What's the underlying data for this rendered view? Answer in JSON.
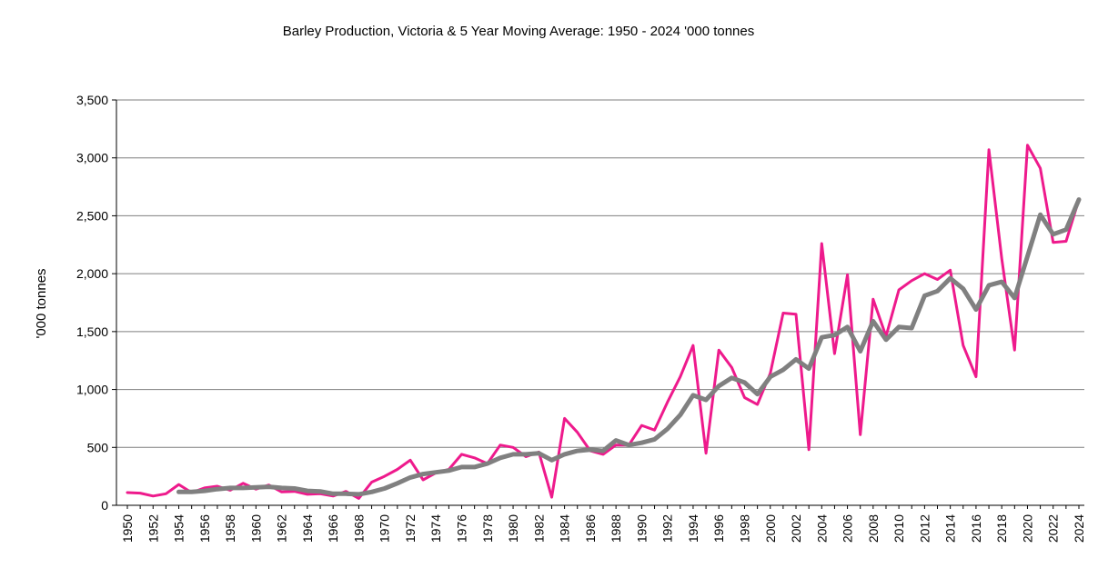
{
  "chart_data": {
    "type": "line",
    "title": "Barley Production, Victoria & 5 Year Moving Average: 1950 - 2024 '000 tonnes",
    "xlabel": "",
    "ylabel": "'000 tonnes",
    "ylim": [
      0,
      3500
    ],
    "yticks": [
      "0",
      "500",
      "1,000",
      "1,500",
      "2,000",
      "2,500",
      "3,000",
      "3,500"
    ],
    "ytick_values": [
      0,
      500,
      1000,
      1500,
      2000,
      2500,
      3000,
      3500
    ],
    "xlim": [
      1950,
      2024
    ],
    "xticks": [
      "1950",
      "1952",
      "1954",
      "1956",
      "1958",
      "1960",
      "1962",
      "1964",
      "1966",
      "1968",
      "1970",
      "1972",
      "1974",
      "1976",
      "1978",
      "1980",
      "1982",
      "1984",
      "1986",
      "1988",
      "1990",
      "1992",
      "1994",
      "1996",
      "1998",
      "2000",
      "2002",
      "2004",
      "2006",
      "2008",
      "2010",
      "2012",
      "2014",
      "2016",
      "2018",
      "2020",
      "2022",
      "2024"
    ],
    "grid": true,
    "legend": "none",
    "series": [
      {
        "color": "#ee1a8c",
        "x": [
          1950,
          1951,
          1952,
          1953,
          1954,
          1955,
          1956,
          1957,
          1958,
          1959,
          1960,
          1961,
          1962,
          1963,
          1964,
          1965,
          1966,
          1967,
          1968,
          1969,
          1970,
          1971,
          1972,
          1973,
          1974,
          1975,
          1976,
          1977,
          1978,
          1979,
          1980,
          1981,
          1982,
          1983,
          1984,
          1985,
          1986,
          1987,
          1988,
          1989,
          1990,
          1991,
          1992,
          1993,
          1994,
          1995,
          1996,
          1997,
          1998,
          1999,
          2000,
          2001,
          2002,
          2003,
          2004,
          2005,
          2006,
          2007,
          2008,
          2009,
          2010,
          2011,
          2012,
          2013,
          2014,
          2015,
          2016,
          2017,
          2018,
          2019,
          2020,
          2021,
          2022,
          2023,
          2024
        ],
        "values": [
          110,
          105,
          80,
          100,
          180,
          110,
          150,
          165,
          130,
          190,
          140,
          175,
          115,
          120,
          95,
          100,
          80,
          120,
          60,
          200,
          250,
          310,
          390,
          220,
          280,
          310,
          440,
          410,
          360,
          520,
          500,
          420,
          460,
          70,
          750,
          630,
          470,
          440,
          520,
          520,
          690,
          650,
          890,
          1110,
          1380,
          450,
          1340,
          1190,
          930,
          870,
          1140,
          1660,
          1650,
          480,
          2260,
          1310,
          1990,
          610,
          1780,
          1460,
          1860,
          1940,
          2000,
          1950,
          2030,
          1380,
          1110,
          3070,
          2130,
          1340,
          3110,
          2910,
          2270,
          2280,
          2640
        ]
      },
      {
        "color": "#808080",
        "x": [
          1954,
          1955,
          1956,
          1957,
          1958,
          1959,
          1960,
          1961,
          1962,
          1963,
          1964,
          1965,
          1966,
          1967,
          1968,
          1969,
          1970,
          1971,
          1972,
          1973,
          1974,
          1975,
          1976,
          1977,
          1978,
          1979,
          1980,
          1981,
          1982,
          1983,
          1984,
          1985,
          1986,
          1987,
          1988,
          1989,
          1990,
          1991,
          1992,
          1993,
          1994,
          1995,
          1996,
          1997,
          1998,
          1999,
          2000,
          2001,
          2002,
          2003,
          2004,
          2005,
          2006,
          2007,
          2008,
          2009,
          2010,
          2011,
          2012,
          2013,
          2014,
          2015,
          2016,
          2017,
          2018,
          2019,
          2020,
          2021,
          2022,
          2023,
          2024
        ],
        "values": [
          115,
          115,
          125,
          140,
          150,
          150,
          155,
          160,
          150,
          145,
          125,
          120,
          100,
          100,
          95,
          115,
          145,
          190,
          240,
          270,
          285,
          300,
          330,
          330,
          360,
          410,
          440,
          440,
          450,
          390,
          440,
          470,
          480,
          470,
          560,
          520,
          540,
          570,
          660,
          780,
          950,
          910,
          1030,
          1100,
          1060,
          960,
          1110,
          1170,
          1260,
          1180,
          1450,
          1470,
          1540,
          1330,
          1590,
          1430,
          1540,
          1530,
          1810,
          1850,
          1960,
          1870,
          1690,
          1900,
          1930,
          1790,
          2150,
          2510,
          2340,
          2380,
          2640
        ]
      }
    ]
  }
}
